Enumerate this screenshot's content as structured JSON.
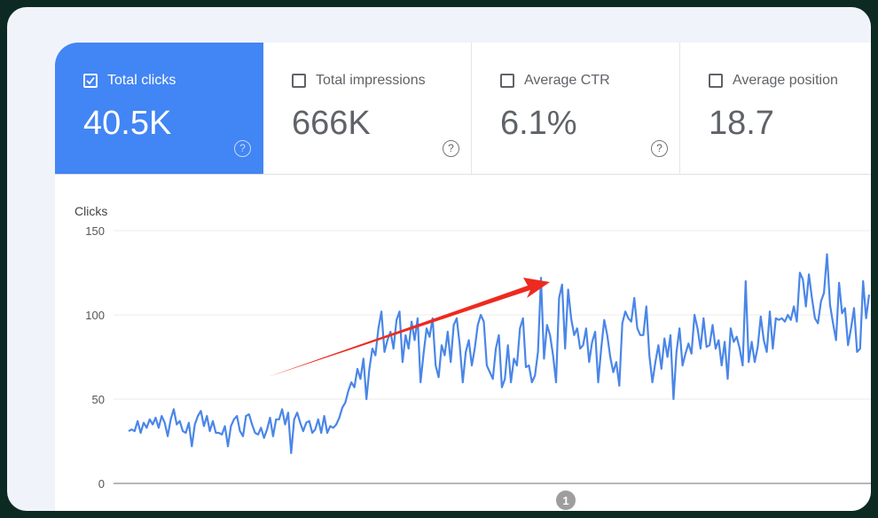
{
  "metrics": [
    {
      "label": "Total clicks",
      "value": "40.5K",
      "checked": true
    },
    {
      "label": "Total impressions",
      "value": "666K",
      "checked": false
    },
    {
      "label": "Average CTR",
      "value": "6.1%",
      "checked": false
    },
    {
      "label": "Average position",
      "value": "18.7",
      "checked": false
    }
  ],
  "help_glyph": "?",
  "colors": {
    "accent": "#4285f4",
    "line": "#4a86e8",
    "arrow": "#ee2a1f",
    "frame": "#0d2a22"
  },
  "annotation_marker": "1",
  "chart_data": {
    "type": "line",
    "ylabel": "Clicks",
    "ylim": [
      0,
      150
    ],
    "yticks": [
      0,
      50,
      100,
      150
    ],
    "grid": true,
    "series": [
      {
        "values": [
          31,
          32,
          31,
          37,
          30,
          36,
          33,
          38,
          35,
          39,
          33,
          40,
          36,
          28,
          38,
          44,
          35,
          37,
          31,
          30,
          36,
          22,
          35,
          40,
          43,
          34,
          40,
          31,
          37,
          30,
          30,
          29,
          34,
          22,
          34,
          38,
          40,
          31,
          28,
          40,
          41,
          35,
          30,
          29,
          33,
          27,
          32,
          39,
          28,
          38,
          38,
          44,
          35,
          42,
          18,
          38,
          42,
          36,
          31,
          36,
          37,
          30,
          32,
          38,
          30,
          40,
          30,
          34,
          33,
          35,
          39,
          45,
          48,
          55,
          60,
          57,
          68,
          62,
          74,
          50,
          68,
          80,
          76,
          92,
          102,
          78,
          85,
          90,
          80,
          97,
          102,
          72,
          88,
          80,
          96,
          85,
          98,
          60,
          77,
          92,
          87,
          98,
          70,
          63,
          82,
          76,
          90,
          72,
          94,
          98,
          82,
          60,
          78,
          85,
          70,
          80,
          94,
          100,
          96,
          70,
          66,
          62,
          80,
          88,
          57,
          62,
          82,
          60,
          74,
          70,
          92,
          98,
          69,
          70,
          60,
          64,
          78,
          122,
          74,
          94,
          88,
          76,
          60,
          110,
          118,
          80,
          115,
          98,
          88,
          92,
          80,
          82,
          92,
          72,
          84,
          90,
          60,
          80,
          97,
          88,
          75,
          66,
          72,
          58,
          95,
          102,
          98,
          96,
          110,
          92,
          88,
          88,
          105,
          76,
          60,
          72,
          82,
          68,
          86,
          75,
          88,
          50,
          78,
          92,
          70,
          77,
          83,
          77,
          100,
          92,
          80,
          98,
          81,
          82,
          94,
          80,
          85,
          70,
          84,
          62,
          92,
          84,
          87,
          80,
          70,
          120,
          72,
          84,
          72,
          81,
          99,
          85,
          78,
          102,
          80,
          98,
          97,
          98,
          96,
          100,
          97,
          105,
          96,
          125,
          121,
          105,
          124,
          110,
          98,
          95,
          108,
          113,
          136,
          106,
          95,
          85,
          119,
          101,
          104,
          82,
          92,
          104,
          78,
          80,
          120,
          98,
          112
        ]
      }
    ]
  }
}
